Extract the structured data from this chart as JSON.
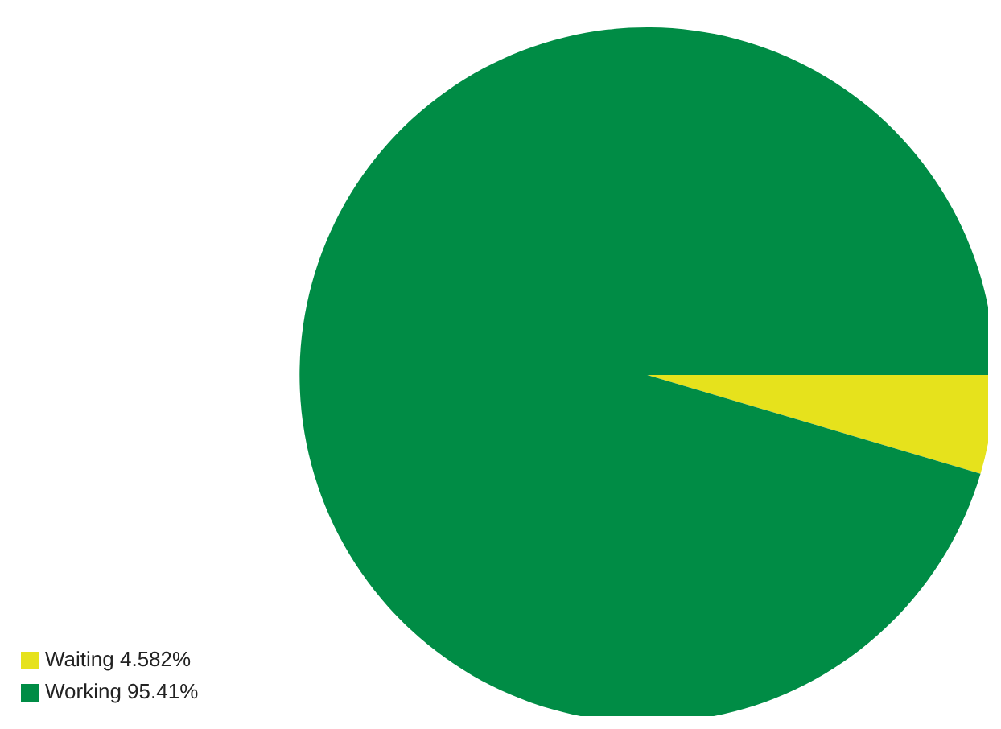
{
  "chart_data": {
    "type": "pie",
    "categories": [
      "Waiting",
      "Working"
    ],
    "values": [
      4.582,
      95.41
    ],
    "value_labels": [
      "4.582%",
      "95.41%"
    ],
    "colors": [
      "#e6e21c",
      "#008c45"
    ],
    "legend": "bottom left"
  }
}
